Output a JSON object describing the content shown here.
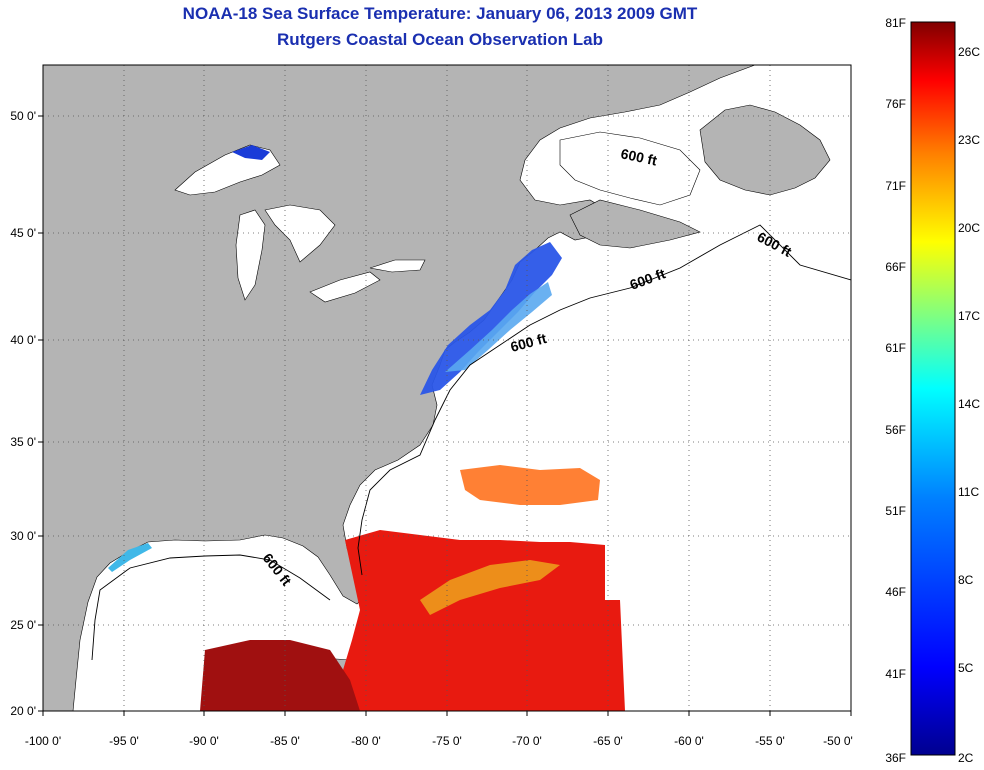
{
  "title": "NOAA-18 Sea Surface Temperature:  January 06, 2013 2009 GMT",
  "subtitle": "Rutgers Coastal Ocean Observation Lab",
  "map": {
    "lon_range": [
      -100,
      -50
    ],
    "lat_range": [
      20,
      52.5
    ],
    "lon_ticks": [
      "-100 0'",
      "-95 0'",
      "-90 0'",
      "-85 0'",
      "-80 0'",
      "-75 0'",
      "-70 0'",
      "-65 0'",
      "-60 0'",
      "-55 0'",
      "-50 0'"
    ],
    "lat_ticks": [
      "20 0'",
      "25 0'",
      "30 0'",
      "35 0'",
      "40 0'",
      "45 0'",
      "50 0'"
    ],
    "grid": "dotted",
    "land_color": "#b4b4b4",
    "water_color": "#ffffff",
    "contour_label": "600 ft"
  },
  "colorbar": {
    "fahrenheit": [
      "81F",
      "76F",
      "71F",
      "66F",
      "61F",
      "56F",
      "51F",
      "46F",
      "41F",
      "36F"
    ],
    "celsius": [
      "26C",
      "23C",
      "20C",
      "17C",
      "14C",
      "11C",
      "8C",
      "5C",
      "2C"
    ],
    "colors": [
      "#00008f",
      "#0000ff",
      "#0080ff",
      "#00ffff",
      "#80ff80",
      "#ffff00",
      "#ff8000",
      "#ff0000",
      "#800000"
    ]
  }
}
